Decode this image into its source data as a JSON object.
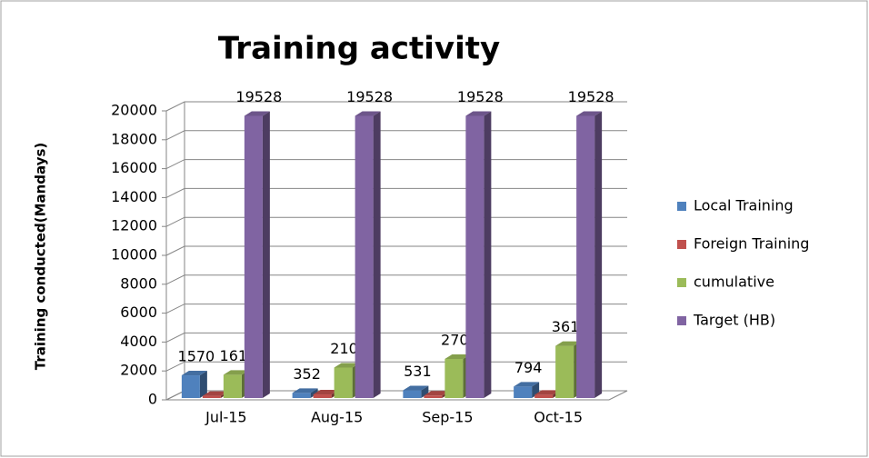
{
  "chart_data": {
    "type": "bar3d",
    "title": "Training activity",
    "y_label": "Training conducted(Mandays)",
    "categories": [
      "Jul-15",
      "Aug-15",
      "Sep-15",
      "Oct-15"
    ],
    "series": [
      {
        "name": "Local Training",
        "color": "#4f81bd",
        "values": [
          1570,
          352,
          531,
          794
        ],
        "data_labels": true
      },
      {
        "name": "Foreign Training",
        "color": "#c0504d",
        "values": [
          150,
          250,
          170,
          230
        ],
        "data_labels": false
      },
      {
        "name": "cumulative",
        "color": "#9bbb59",
        "values": [
          1614,
          2107,
          2707,
          3612
        ],
        "data_labels": true
      },
      {
        "name": "Target (HB)",
        "color": "#8064a2",
        "values": [
          19528,
          19528,
          19528,
          19528
        ],
        "data_labels": true
      }
    ],
    "ylim": [
      0,
      20000
    ],
    "yticks": [
      0,
      2000,
      4000,
      6000,
      8000,
      10000,
      12000,
      14000,
      16000,
      18000,
      20000
    ],
    "grid": true,
    "legend": "right"
  }
}
